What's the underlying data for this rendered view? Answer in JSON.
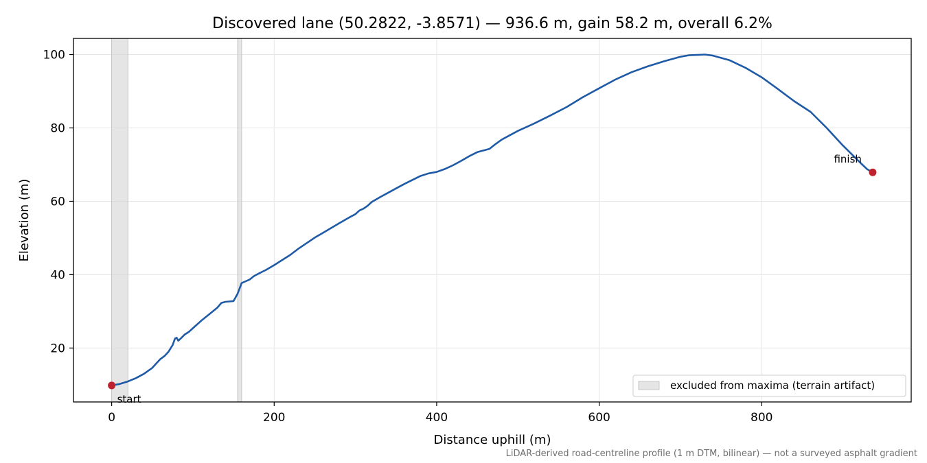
{
  "chart_data": {
    "type": "line",
    "title": "Discovered lane (50.2822, -3.8571) — 936.6 m, gain 58.2 m, overall 6.2%",
    "xlabel": "Distance uphill (m)",
    "ylabel": "Elevation (m)",
    "xlim": [
      -47,
      984
    ],
    "ylim": [
      5.3,
      104.4
    ],
    "x_ticks": [
      0,
      200,
      400,
      600,
      800
    ],
    "y_ticks": [
      20,
      40,
      60,
      80,
      100
    ],
    "grid": true,
    "legend_position": "lower-right",
    "legend": [
      "excluded from maxima (terrain artifact)"
    ],
    "footnote": "LiDAR-derived road-centreline profile (1 m DTM, bilinear) — not a surveyed asphalt gradient",
    "colors": {
      "line": "#1f5aa6",
      "marker": "#c0212e",
      "excluded_band": "#d3d3d3",
      "grid": "#e6e6e6"
    },
    "excluded_regions": [
      [
        0,
        20
      ],
      [
        155,
        160
      ]
    ],
    "series": [
      {
        "x": [
          0,
          10,
          20,
          30,
          40,
          50,
          55,
          60,
          65,
          70,
          75,
          78,
          80,
          82,
          85,
          90,
          95,
          100,
          110,
          120,
          130,
          135,
          140,
          145,
          150,
          155,
          160,
          165,
          170,
          175,
          180,
          190,
          200,
          210,
          220,
          230,
          240,
          250,
          260,
          270,
          280,
          290,
          300,
          305,
          310,
          315,
          320,
          330,
          340,
          350,
          360,
          370,
          380,
          390,
          400,
          410,
          420,
          430,
          440,
          450,
          460,
          465,
          470,
          480,
          490,
          500,
          520,
          540,
          560,
          580,
          600,
          620,
          640,
          660,
          680,
          700,
          705,
          710,
          720,
          730,
          740,
          760,
          780,
          800,
          820,
          840,
          860,
          880,
          900,
          920,
          930,
          936.6
        ],
        "y": [
          9.8,
          10.2,
          10.9,
          11.8,
          13.0,
          14.6,
          15.8,
          17.0,
          17.8,
          19.0,
          20.8,
          22.6,
          22.8,
          22.0,
          22.6,
          23.7,
          24.4,
          25.4,
          27.4,
          29.2,
          31.0,
          32.3,
          32.6,
          32.7,
          32.8,
          34.8,
          37.7,
          38.2,
          38.7,
          39.6,
          40.2,
          41.3,
          42.6,
          44.0,
          45.4,
          47.1,
          48.6,
          50.1,
          51.4,
          52.7,
          54.0,
          55.3,
          56.5,
          57.5,
          58.0,
          58.8,
          59.8,
          61.1,
          62.3,
          63.5,
          64.7,
          65.8,
          66.9,
          67.6,
          68.0,
          68.8,
          69.8,
          71.0,
          72.3,
          73.4,
          74.0,
          74.3,
          75.2,
          76.8,
          78.0,
          79.2,
          81.2,
          83.4,
          85.7,
          88.4,
          90.8,
          93.2,
          95.2,
          96.8,
          98.2,
          99.4,
          99.6,
          99.8,
          99.9,
          100.0,
          99.7,
          98.5,
          96.4,
          93.8,
          90.6,
          87.3,
          84.4,
          80.0,
          75.2,
          70.8,
          68.7,
          67.9
        ]
      }
    ],
    "annotations": [
      {
        "label": "start",
        "x": 0,
        "y": 9.8
      },
      {
        "label": "finish",
        "x": 936.6,
        "y": 67.9
      }
    ]
  }
}
